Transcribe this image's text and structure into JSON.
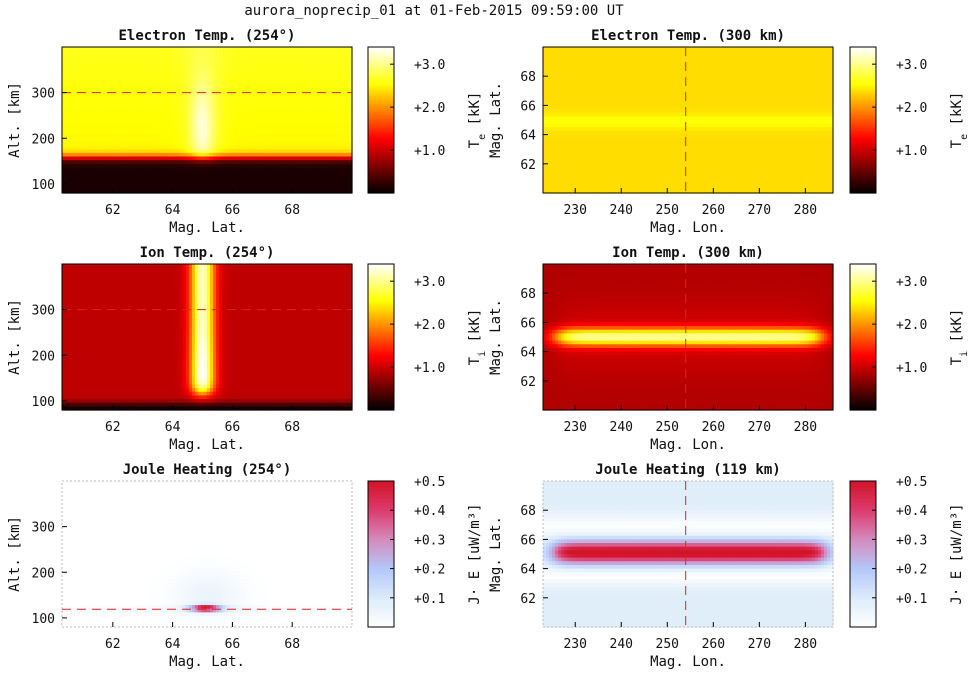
{
  "figure": {
    "title": "aurora_noprecip_01 at 01-Feb-2015 09:59:00 UT"
  },
  "chart_data": [
    {
      "type": "heatmap",
      "title": "Electron Temp. (254°)",
      "xlabel": "Mag. Lat.",
      "ylabel": "Alt. [km]",
      "xlim": [
        60.3,
        70.0
      ],
      "ylim": [
        80,
        400
      ],
      "xticks": [
        62,
        64,
        66,
        68
      ],
      "yticks": [
        100,
        200,
        300
      ],
      "reference_line": {
        "axis": "y",
        "value": 300
      },
      "colormap": "hot",
      "colorbar": {
        "label": "T",
        "sub": "e",
        "unit": " [kK]",
        "range": [
          0.0,
          3.4
        ],
        "ticks": [
          "+1.0",
          "+2.0",
          "+3.0"
        ],
        "tick_values": [
          1.0,
          2.0,
          3.0
        ]
      },
      "field": "te_alt"
    },
    {
      "type": "heatmap",
      "title": "Electron Temp. (300 km)",
      "xlabel": "Mag. Lon.",
      "ylabel": "Mag. Lat.",
      "xlim": [
        223,
        286
      ],
      "ylim": [
        60.0,
        70.0
      ],
      "xticks": [
        230,
        240,
        250,
        260,
        270,
        280
      ],
      "yticks": [
        62,
        64,
        66,
        68
      ],
      "reference_line": {
        "axis": "x",
        "value": 254
      },
      "colormap": "hot",
      "colorbar": {
        "label": "T",
        "sub": "e",
        "unit": " [kK]",
        "range": [
          0.0,
          3.4
        ],
        "ticks": [
          "+1.0",
          "+2.0",
          "+3.0"
        ],
        "tick_values": [
          1.0,
          2.0,
          3.0
        ]
      },
      "field": "te_map"
    },
    {
      "type": "heatmap",
      "title": "Ion Temp. (254°)",
      "xlabel": "Mag. Lat.",
      "ylabel": "Alt. [km]",
      "xlim": [
        60.3,
        70.0
      ],
      "ylim": [
        80,
        400
      ],
      "xticks": [
        62,
        64,
        66,
        68
      ],
      "yticks": [
        100,
        200,
        300
      ],
      "reference_line": {
        "axis": "y",
        "value": 300
      },
      "colormap": "hot",
      "colorbar": {
        "label": "T",
        "sub": "i",
        "unit": " [kK]",
        "range": [
          0.0,
          3.4
        ],
        "ticks": [
          "+1.0",
          "+2.0",
          "+3.0"
        ],
        "tick_values": [
          1.0,
          2.0,
          3.0
        ]
      },
      "field": "ti_alt"
    },
    {
      "type": "heatmap",
      "title": "Ion Temp. (300 km)",
      "xlabel": "Mag. Lon.",
      "ylabel": "Mag. Lat.",
      "xlim": [
        223,
        286
      ],
      "ylim": [
        60.0,
        70.0
      ],
      "xticks": [
        230,
        240,
        250,
        260,
        270,
        280
      ],
      "yticks": [
        62,
        64,
        66,
        68
      ],
      "reference_line": {
        "axis": "x",
        "value": 254
      },
      "colormap": "hot",
      "colorbar": {
        "label": "T",
        "sub": "i",
        "unit": " [kK]",
        "range": [
          0.0,
          3.4
        ],
        "ticks": [
          "+1.0",
          "+2.0",
          "+3.0"
        ],
        "tick_values": [
          1.0,
          2.0,
          3.0
        ]
      },
      "field": "ti_map"
    },
    {
      "type": "heatmap",
      "title": "Joule Heating (254°)",
      "xlabel": "Mag. Lat.",
      "ylabel": "Alt. [km]",
      "xlim": [
        60.3,
        70.0
      ],
      "ylim": [
        80,
        400
      ],
      "xticks": [
        62,
        64,
        66,
        68
      ],
      "yticks": [
        100,
        200,
        300
      ],
      "reference_line": {
        "axis": "y",
        "value": 119
      },
      "colormap": "white-blue-red",
      "colorbar": {
        "label": "J· E",
        "sub": "",
        "unit": " [uW/m³]",
        "range": [
          0.0,
          0.5
        ],
        "ticks": [
          "+0.1",
          "+0.2",
          "+0.3",
          "+0.4",
          "+0.5"
        ],
        "tick_values": [
          0.1,
          0.2,
          0.3,
          0.4,
          0.5
        ]
      },
      "field": "je_alt"
    },
    {
      "type": "heatmap",
      "title": "Joule Heating (119 km)",
      "xlabel": "Mag. Lon.",
      "ylabel": "Mag. Lat.",
      "xlim": [
        223,
        286
      ],
      "ylim": [
        60.0,
        70.0
      ],
      "xticks": [
        230,
        240,
        250,
        260,
        270,
        280
      ],
      "yticks": [
        62,
        64,
        66,
        68
      ],
      "reference_line": {
        "axis": "x",
        "value": 254
      },
      "colormap": "white-blue-red",
      "colorbar": {
        "label": "J· E",
        "sub": "",
        "unit": " [uW/m³]",
        "range": [
          0.0,
          0.5
        ],
        "ticks": [
          "+0.1",
          "+0.2",
          "+0.3",
          "+0.4",
          "+0.5"
        ],
        "tick_values": [
          0.1,
          0.2,
          0.3,
          0.4,
          0.5
        ]
      },
      "field": "je_map"
    }
  ]
}
